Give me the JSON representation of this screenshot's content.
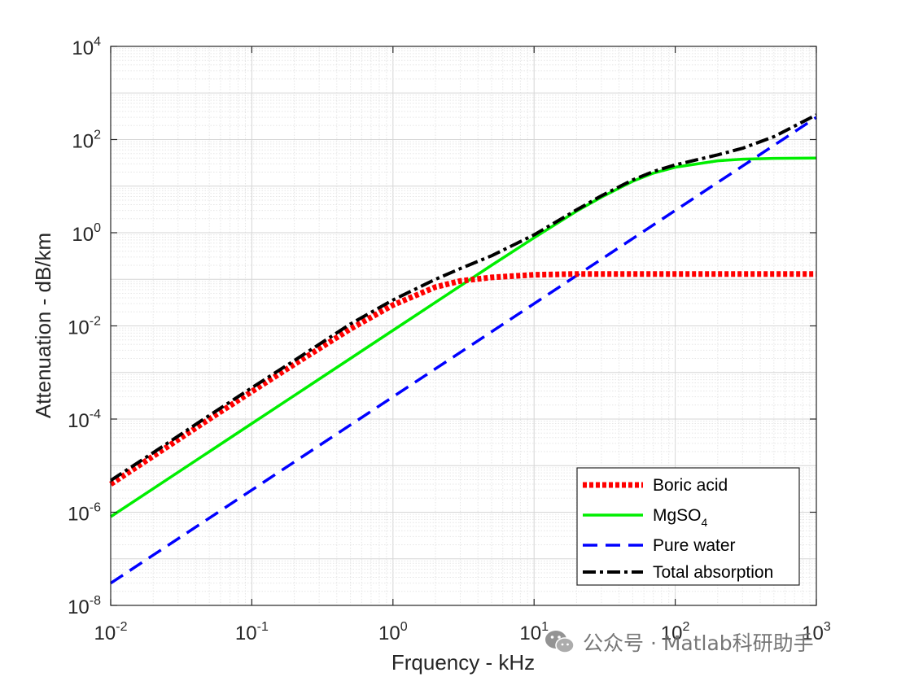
{
  "chart_data": {
    "type": "line",
    "xscale": "log",
    "yscale": "log",
    "xlabel": "Frquency - kHz",
    "ylabel": "Attenuation - dB/km",
    "xlim": [
      0.01,
      1000
    ],
    "ylim": [
      1e-08,
      10000
    ],
    "grid": true,
    "minor_grid": true,
    "legend_position": "bottom-right",
    "x_ticks": [
      {
        "base": "10",
        "exp": "-2"
      },
      {
        "base": "10",
        "exp": "-1"
      },
      {
        "base": "10",
        "exp": "0"
      },
      {
        "base": "10",
        "exp": "1"
      },
      {
        "base": "10",
        "exp": "2"
      },
      {
        "base": "10",
        "exp": "3"
      }
    ],
    "y_ticks": [
      {
        "base": "10",
        "exp": "-8"
      },
      {
        "base": "10",
        "exp": "-6"
      },
      {
        "base": "10",
        "exp": "-4"
      },
      {
        "base": "10",
        "exp": "-2"
      },
      {
        "base": "10",
        "exp": "0"
      },
      {
        "base": "10",
        "exp": "2"
      },
      {
        "base": "10",
        "exp": "4"
      }
    ],
    "x": [
      0.01,
      0.02,
      0.05,
      0.1,
      0.2,
      0.5,
      1,
      2,
      3,
      5,
      10,
      20,
      30,
      50,
      70,
      100,
      200,
      300,
      500,
      1000
    ],
    "series": [
      {
        "legend_label": "Boric acid",
        "legend_sub": "",
        "color": "#ff0000",
        "style": "dotted",
        "values": [
          4e-06,
          1.6e-05,
          0.0001,
          0.00039,
          0.0015,
          0.0086,
          0.028,
          0.068,
          0.092,
          0.11,
          0.125,
          0.13,
          0.13,
          0.13,
          0.13,
          0.13,
          0.13,
          0.13,
          0.13,
          0.13
        ]
      },
      {
        "legend_label": "MgSO",
        "legend_sub": "4",
        "color": "#00ee00",
        "style": "solid",
        "values": [
          8e-07,
          3.2e-06,
          2e-05,
          8e-05,
          0.00032,
          0.002,
          0.008,
          0.032,
          0.072,
          0.2,
          0.78,
          2.9,
          5.8,
          12.7,
          19,
          25.5,
          35,
          38,
          39.5,
          40
        ]
      },
      {
        "legend_label": "Pure water",
        "legend_sub": "",
        "color": "#0000ff",
        "style": "dashed",
        "values": [
          3e-08,
          1.2e-07,
          7.5e-07,
          3e-06,
          1.2e-05,
          7.5e-05,
          0.0003,
          0.0012,
          0.0027,
          0.0075,
          0.03,
          0.12,
          0.27,
          0.75,
          1.47,
          3.0,
          12,
          27,
          75,
          300
        ]
      },
      {
        "legend_label": "Total absorption",
        "legend_sub": "",
        "color": "#000000",
        "style": "dashdot",
        "values": [
          4.8e-06,
          1.9e-05,
          0.00012,
          0.00047,
          0.0018,
          0.011,
          0.036,
          0.1,
          0.17,
          0.32,
          0.9,
          3.1,
          6.2,
          13.6,
          20.6,
          28.6,
          47,
          65,
          115,
          340
        ]
      }
    ]
  },
  "watermark": {
    "text": "公众号 · Matlab科研助手",
    "icon": "wechat-icon"
  }
}
